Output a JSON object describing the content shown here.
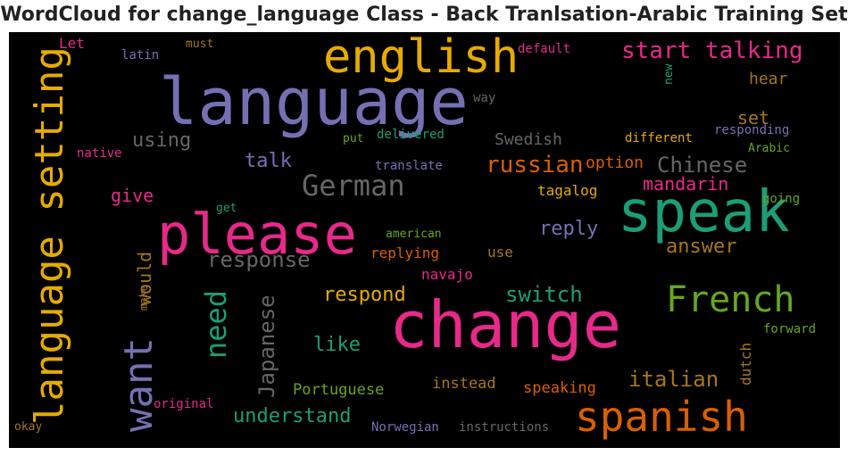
{
  "title": "WordCloud for change_language Class - Back Tranlsation-Arabic Training Set",
  "colors": {
    "background": "#000000",
    "title": "#222222"
  },
  "words": [
    {
      "text": "language",
      "color": "#7570b3"
    },
    {
      "text": "english",
      "color": "#e6ab02"
    },
    {
      "text": "start talking",
      "color": "#e7298a"
    },
    {
      "text": "speak",
      "color": "#1b9e77"
    },
    {
      "text": "please",
      "color": "#e7298a"
    },
    {
      "text": "change",
      "color": "#e7298a"
    },
    {
      "text": "language setting",
      "color": "#e6ab02"
    },
    {
      "text": "French",
      "color": "#66a61e"
    },
    {
      "text": "spanish",
      "color": "#d95f02"
    },
    {
      "text": "want",
      "color": "#7570b3"
    },
    {
      "text": "German",
      "color": "#666666"
    },
    {
      "text": "response",
      "color": "#666666"
    },
    {
      "text": "russian",
      "color": "#d95f02"
    },
    {
      "text": "Chinese",
      "color": "#666666"
    },
    {
      "text": "need",
      "color": "#1b9e77"
    },
    {
      "text": "Japanese",
      "color": "#666666"
    },
    {
      "text": "switch",
      "color": "#1b9e77"
    },
    {
      "text": "understand",
      "color": "#1b9e77"
    },
    {
      "text": "italian",
      "color": "#a6761d"
    },
    {
      "text": "mandarin",
      "color": "#e7298a"
    },
    {
      "text": "answer",
      "color": "#a6761d"
    },
    {
      "text": "reply",
      "color": "#7570b3"
    },
    {
      "text": "respond",
      "color": "#e6ab02"
    },
    {
      "text": "talk",
      "color": "#7570b3"
    },
    {
      "text": "using",
      "color": "#666666"
    },
    {
      "text": "set",
      "color": "#a6761d"
    },
    {
      "text": "hear",
      "color": "#a6761d"
    },
    {
      "text": "like",
      "color": "#1b9e77"
    },
    {
      "text": "would",
      "color": "#a6761d"
    },
    {
      "text": "give",
      "color": "#e7298a"
    },
    {
      "text": "Swedish",
      "color": "#666666"
    },
    {
      "text": "option",
      "color": "#d95f02"
    },
    {
      "text": "tagalog",
      "color": "#e6ab02"
    },
    {
      "text": "replying",
      "color": "#d95f02"
    },
    {
      "text": "navajo",
      "color": "#e7298a"
    },
    {
      "text": "Portuguese",
      "color": "#66a61e"
    },
    {
      "text": "instead",
      "color": "#a6761d"
    },
    {
      "text": "speaking",
      "color": "#d95f02"
    },
    {
      "text": "dutch",
      "color": "#a6761d"
    },
    {
      "text": "Let",
      "color": "#e7298a"
    },
    {
      "text": "must",
      "color": "#a6761d"
    },
    {
      "text": "latin",
      "color": "#7570b3"
    },
    {
      "text": "default",
      "color": "#e7298a"
    },
    {
      "text": "new",
      "color": "#1b9e77"
    },
    {
      "text": "way",
      "color": "#666666"
    },
    {
      "text": "put",
      "color": "#66a61e"
    },
    {
      "text": "delivered",
      "color": "#1b9e77"
    },
    {
      "text": "different",
      "color": "#e6ab02"
    },
    {
      "text": "responding",
      "color": "#7570b3"
    },
    {
      "text": "Arabic",
      "color": "#66a61e"
    },
    {
      "text": "native",
      "color": "#e7298a"
    },
    {
      "text": "translate",
      "color": "#7570b3"
    },
    {
      "text": "going",
      "color": "#66a61e"
    },
    {
      "text": "get",
      "color": "#1b9e77"
    },
    {
      "text": "american",
      "color": "#66a61e"
    },
    {
      "text": "use",
      "color": "#a6761d"
    },
    {
      "text": "make",
      "color": "#a6761d"
    },
    {
      "text": "forward",
      "color": "#66a61e"
    },
    {
      "text": "original",
      "color": "#e7298a"
    },
    {
      "text": "okay",
      "color": "#a6761d"
    },
    {
      "text": "Norwegian",
      "color": "#7570b3"
    },
    {
      "text": "instructions",
      "color": "#666666"
    }
  ]
}
